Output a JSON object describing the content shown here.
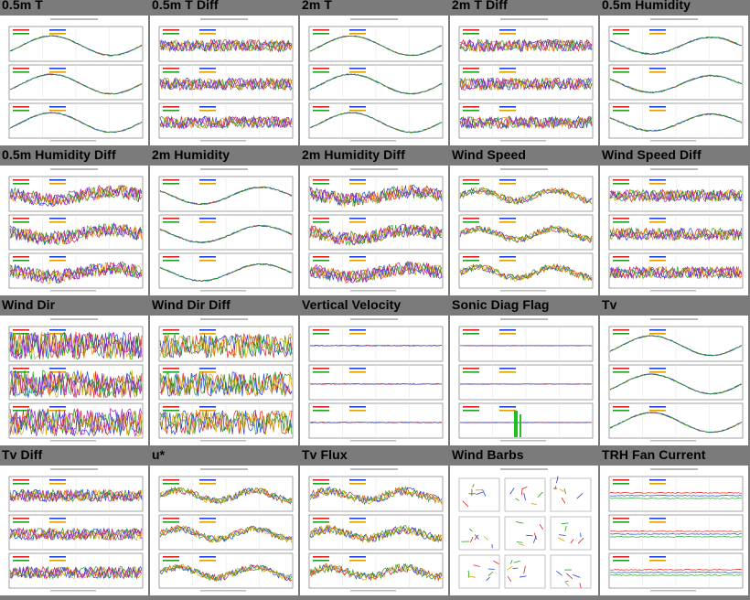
{
  "panels": [
    {
      "title": "0.5m T",
      "kind": "temp"
    },
    {
      "title": "0.5m T Diff",
      "kind": "diff"
    },
    {
      "title": "2m T",
      "kind": "temp"
    },
    {
      "title": "2m T Diff",
      "kind": "diff"
    },
    {
      "title": "0.5m Humidity",
      "kind": "hum"
    },
    {
      "title": "0.5m Humidity Diff",
      "kind": "humdiff"
    },
    {
      "title": "2m Humidity",
      "kind": "hum"
    },
    {
      "title": "2m Humidity Diff",
      "kind": "humdiff"
    },
    {
      "title": "Wind Speed",
      "kind": "wind"
    },
    {
      "title": "Wind Speed Diff",
      "kind": "diff"
    },
    {
      "title": "Wind Dir",
      "kind": "dir"
    },
    {
      "title": "Wind Dir Diff",
      "kind": "dirdiff"
    },
    {
      "title": "Vertical Velocity",
      "kind": "flat"
    },
    {
      "title": "Sonic Diag Flag",
      "kind": "flag"
    },
    {
      "title": "Tv",
      "kind": "temp"
    },
    {
      "title": "Tv Diff",
      "kind": "diff"
    },
    {
      "title": "u*",
      "kind": "wind"
    },
    {
      "title": "Tv Flux",
      "kind": "flux"
    },
    {
      "title": "Wind Barbs",
      "kind": "barbs"
    },
    {
      "title": "TRH Fan Current",
      "kind": "fan"
    }
  ],
  "series_colors": [
    "#e02020",
    "#2040e0",
    "#20a020",
    "#e0a000",
    "#a020c0",
    "#808080"
  ],
  "background_color": "#7b7b7b"
}
